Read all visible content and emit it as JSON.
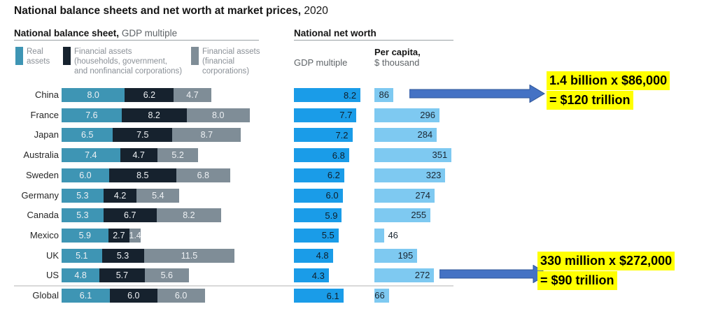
{
  "title": {
    "main": "National balance sheets and net worth at market prices,",
    "year": " 2020"
  },
  "left_panel": {
    "header_bold": "National balance sheet,",
    "header_rest": " GDP multiple",
    "legend": [
      {
        "label": "Real assets",
        "display": "Real\nassets",
        "color": "#3e95b4"
      },
      {
        "label": "Financial assets (households, government, and nonfinancial corporations)",
        "display": "Financial assets\n(households, government,\nand nonfinancial corporations)",
        "color": "#16222e"
      },
      {
        "label": "Financial assets (financial corporations)",
        "display": "Financial assets\n(financial\ncorporations)",
        "color": "#7f8d97"
      }
    ]
  },
  "right_panel": {
    "header": "National net worth",
    "col_gdp_label": "GDP multiple",
    "col_capita_bold": "Per capita,",
    "col_capita_rest": "$ thousand"
  },
  "annotations": [
    {
      "row": "China",
      "line1": "1.4 billion x $86,000",
      "line2": "= $120 trillion"
    },
    {
      "row": "US",
      "line1": "330 million x $272,000",
      "line2": "= $90 trillion"
    }
  ],
  "colors": {
    "real_assets": "#3e95b4",
    "financial_assets_households": "#16222e",
    "financial_assets_corporations": "#7f8d97",
    "net_worth_gdp": "#1a9ce8",
    "net_worth_per_capita": "#7ec9f1",
    "arrow": "#4472c4",
    "arrow_border": "#2f5597",
    "highlight": "#ffff00"
  },
  "chart_data": {
    "type": "bar",
    "orientation": "horizontal",
    "title": "National balance sheets and net worth at market prices, 2020",
    "categories": [
      "China",
      "France",
      "Japan",
      "Australia",
      "Sweden",
      "Germany",
      "Canada",
      "Mexico",
      "UK",
      "US",
      "Global"
    ],
    "stacked_series": [
      {
        "name": "Real assets",
        "unit": "GDP multiple",
        "color": "#3e95b4",
        "values": [
          8.0,
          7.6,
          6.5,
          7.4,
          6.0,
          5.3,
          5.3,
          5.9,
          5.1,
          4.8,
          6.1
        ]
      },
      {
        "name": "Financial assets (households, government, and nonfinancial corporations)",
        "unit": "GDP multiple",
        "color": "#16222e",
        "values": [
          6.2,
          8.2,
          7.5,
          4.7,
          8.5,
          4.2,
          6.7,
          2.7,
          5.3,
          5.7,
          6.0
        ]
      },
      {
        "name": "Financial assets (financial corporations)",
        "unit": "GDP multiple",
        "color": "#7f8d97",
        "values": [
          4.7,
          8.0,
          8.7,
          5.2,
          6.8,
          5.4,
          8.2,
          1.4,
          11.5,
          5.6,
          6.0
        ]
      }
    ],
    "net_worth_gdp_multiple": {
      "name": "National net worth, GDP multiple",
      "color": "#1a9ce8",
      "values": [
        8.2,
        7.7,
        7.2,
        6.8,
        6.2,
        6.0,
        5.9,
        5.5,
        4.8,
        4.3,
        6.1
      ]
    },
    "net_worth_per_capita": {
      "name": "National net worth per capita, $ thousand",
      "color": "#7ec9f1",
      "values": [
        86,
        296,
        284,
        351,
        323,
        274,
        255,
        46,
        195,
        272,
        66
      ]
    },
    "legend_position": "top-left",
    "grid": false
  }
}
